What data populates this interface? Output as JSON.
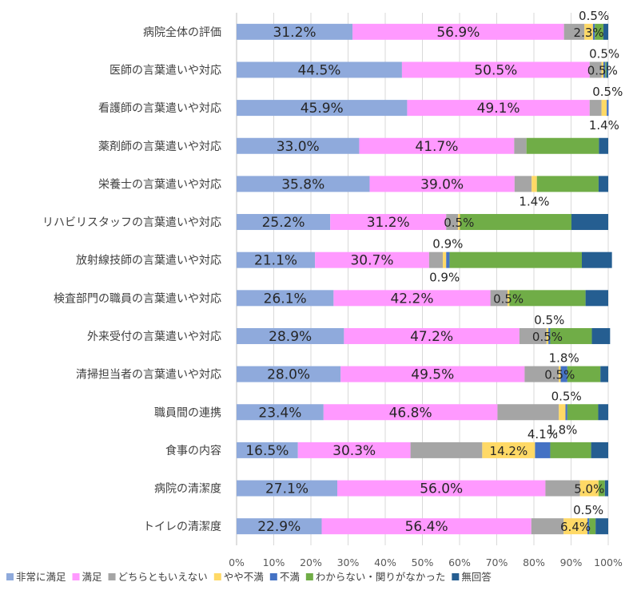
{
  "chart_data": {
    "type": "bar",
    "stacked": true,
    "orientation": "horizontal",
    "x_unit": "%",
    "xlim": [
      0,
      100
    ],
    "x_ticks": [
      "0%",
      "10%",
      "20%",
      "30%",
      "40%",
      "50%",
      "60%",
      "70%",
      "80%",
      "90%",
      "100%"
    ],
    "grid": true,
    "legend_position": "bottom",
    "categories": [
      "病院全体の評価",
      "医師の言葉遣いや対応",
      "看護師の言葉遣いや対応",
      "薬剤師の言葉遣いや対応",
      "栄養士の言葉遣いや対応",
      "リハビリスタッフの言葉遣いや対応",
      "放射線技師の言葉遣いや対応",
      "検査部門の職員の言葉遣いや対応",
      "外来受付の言葉遣いや対応",
      "清掃担当者の言葉遣いや対応",
      "職員間の連携",
      "食事の内容",
      "病院の清潔度",
      "トイレの清潔度"
    ],
    "series": [
      {
        "name": "非常に満足",
        "color": "#8FAADC",
        "values": [
          31.2,
          44.5,
          45.9,
          33.0,
          35.8,
          25.2,
          21.1,
          26.1,
          28.9,
          28.0,
          23.4,
          16.5,
          27.1,
          22.9
        ]
      },
      {
        "name": "満足",
        "color": "#FF99FF",
        "values": [
          56.9,
          50.5,
          49.1,
          41.7,
          39.0,
          31.2,
          30.7,
          42.2,
          47.2,
          49.5,
          46.8,
          30.3,
          56.0,
          56.4
        ]
      },
      {
        "name": "どちらともいえない",
        "color": "#A5A5A5",
        "values": [
          5.5,
          3.2,
          3.2,
          3.3,
          4.6,
          3.2,
          3.7,
          4.6,
          7.3,
          9.2,
          16.5,
          19.3,
          9.3,
          8.7
        ]
      },
      {
        "name": "やや不満",
        "color": "#FFD966",
        "values": [
          2.3,
          0.5,
          1.4,
          0.0,
          1.4,
          0.5,
          0.9,
          0.5,
          0.5,
          0.5,
          1.8,
          14.2,
          5.0,
          6.4
        ]
      },
      {
        "name": "不満",
        "color": "#4472C4",
        "values": [
          0.5,
          0.5,
          0.5,
          0.0,
          0.0,
          0.0,
          0.9,
          0.0,
          0.5,
          1.8,
          0.5,
          4.1,
          0.0,
          0.5
        ]
      },
      {
        "name": "わからない・関りがなかった",
        "color": "#70AD47",
        "values": [
          2.3,
          0.3,
          0.0,
          19.5,
          16.6,
          30.0,
          35.6,
          20.5,
          11.2,
          8.9,
          8.3,
          11.0,
          1.7,
          1.7
        ]
      },
      {
        "name": "無回答",
        "color": "#255E91",
        "values": [
          1.3,
          0.5,
          0.0,
          2.5,
          2.6,
          9.9,
          8.1,
          6.1,
          4.9,
          2.1,
          2.7,
          4.6,
          0.9,
          3.4
        ]
      }
    ],
    "data_labels": [
      [
        {
          "s": 0,
          "text": "31.2%"
        },
        {
          "s": 1,
          "text": "56.9%"
        },
        {
          "s": 3,
          "text": "2.3%"
        },
        {
          "s": 4,
          "text": "0.5%",
          "pos": "above"
        }
      ],
      [
        {
          "s": 0,
          "text": "44.5%"
        },
        {
          "s": 1,
          "text": "50.5%"
        },
        {
          "s": 3,
          "text": "0.5%"
        },
        {
          "s": 4,
          "text": "0.5%",
          "pos": "above"
        }
      ],
      [
        {
          "s": 0,
          "text": "45.9%"
        },
        {
          "s": 1,
          "text": "49.1%"
        },
        {
          "s": 3,
          "text": "1.4%",
          "pos": "below"
        },
        {
          "s": 4,
          "text": "0.5%",
          "pos": "above"
        }
      ],
      [
        {
          "s": 0,
          "text": "33.0%"
        },
        {
          "s": 1,
          "text": "41.7%"
        }
      ],
      [
        {
          "s": 0,
          "text": "35.8%"
        },
        {
          "s": 1,
          "text": "39.0%"
        },
        {
          "s": 3,
          "text": "1.4%",
          "pos": "below"
        }
      ],
      [
        {
          "s": 0,
          "text": "25.2%"
        },
        {
          "s": 1,
          "text": "31.2%"
        },
        {
          "s": 3,
          "text": "0.5%"
        }
      ],
      [
        {
          "s": 0,
          "text": "21.1%"
        },
        {
          "s": 1,
          "text": "30.7%"
        },
        {
          "s": 3,
          "text": "0.9%",
          "pos": "below"
        },
        {
          "s": 4,
          "text": "0.9%",
          "pos": "above"
        }
      ],
      [
        {
          "s": 0,
          "text": "26.1%"
        },
        {
          "s": 1,
          "text": "42.2%"
        },
        {
          "s": 3,
          "text": "0.5%"
        }
      ],
      [
        {
          "s": 0,
          "text": "28.9%"
        },
        {
          "s": 1,
          "text": "47.2%"
        },
        {
          "s": 3,
          "text": "0.5%"
        },
        {
          "s": 4,
          "text": "0.5%",
          "pos": "above"
        }
      ],
      [
        {
          "s": 0,
          "text": "28.0%"
        },
        {
          "s": 1,
          "text": "49.5%"
        },
        {
          "s": 3,
          "text": "0.5%"
        },
        {
          "s": 4,
          "text": "1.8%",
          "pos": "above"
        }
      ],
      [
        {
          "s": 0,
          "text": "23.4%"
        },
        {
          "s": 1,
          "text": "46.8%"
        },
        {
          "s": 3,
          "text": "1.8%",
          "pos": "below"
        },
        {
          "s": 4,
          "text": "0.5%",
          "pos": "above"
        }
      ],
      [
        {
          "s": 0,
          "text": "16.5%"
        },
        {
          "s": 1,
          "text": "30.3%"
        },
        {
          "s": 3,
          "text": "14.2%"
        },
        {
          "s": 4,
          "text": "4.1%",
          "pos": "above"
        }
      ],
      [
        {
          "s": 0,
          "text": "27.1%"
        },
        {
          "s": 1,
          "text": "56.0%"
        },
        {
          "s": 3,
          "text": "5.0%"
        }
      ],
      [
        {
          "s": 0,
          "text": "22.9%"
        },
        {
          "s": 1,
          "text": "56.4%"
        },
        {
          "s": 3,
          "text": "6.4%"
        },
        {
          "s": 4,
          "text": "0.5%",
          "pos": "above"
        }
      ]
    ]
  }
}
